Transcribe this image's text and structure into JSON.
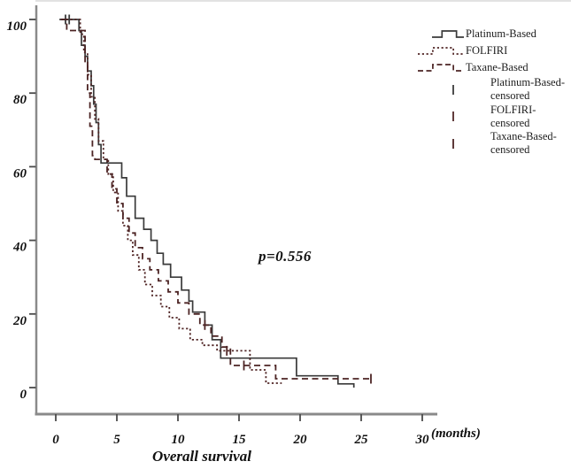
{
  "figure": {
    "p_value": "p=0.556",
    "x_axis_title": "Overall survival",
    "x_unit_label": "(months)"
  },
  "chart_data": {
    "type": "line",
    "subtype": "kaplan-meier-step-curves",
    "title": "",
    "xlabel": "Overall survival",
    "x_unit": "(months)",
    "ylabel": "",
    "xlim": [
      0,
      30
    ],
    "ylim": [
      0,
      100
    ],
    "x_ticks": [
      0,
      5,
      10,
      15,
      20,
      25,
      30
    ],
    "y_ticks": [
      0,
      20,
      40,
      60,
      80,
      100
    ],
    "grid": false,
    "legend_position": "top-right",
    "annotation": {
      "text": "p=0.556",
      "x_months": 18.8,
      "y_percent": 35
    },
    "axis_color": "#8a8a8a",
    "tick_color": "#4a4a4a",
    "label_color": "#101010",
    "series": [
      {
        "name": "Platinum-Based",
        "style": "solid",
        "color": "#3a3a3a",
        "steps": [
          [
            0.3,
            100
          ],
          [
            1.9,
            97
          ],
          [
            2.1,
            93
          ],
          [
            2.4,
            90
          ],
          [
            2.6,
            86
          ],
          [
            2.9,
            82
          ],
          [
            3.1,
            77
          ],
          [
            3.3,
            72
          ],
          [
            3.5,
            66
          ],
          [
            3.7,
            61
          ],
          [
            5.4,
            57
          ],
          [
            5.8,
            52
          ],
          [
            6.5,
            46
          ],
          [
            7.2,
            43
          ],
          [
            7.8,
            40
          ],
          [
            8.3,
            36.5
          ],
          [
            8.8,
            33.5
          ],
          [
            9.4,
            30
          ],
          [
            10.3,
            26.5
          ],
          [
            10.9,
            23.5
          ],
          [
            11.2,
            20.5
          ],
          [
            12.2,
            17
          ],
          [
            12.8,
            13
          ],
          [
            13.5,
            8
          ],
          [
            19.7,
            3.2
          ],
          [
            23.1,
            1
          ],
          [
            24.4,
            0
          ]
        ],
        "censored": [
          [
            0.8,
            100
          ],
          [
            1.1,
            100
          ]
        ]
      },
      {
        "name": "FOLFIRI",
        "style": "dotted",
        "color": "#512626",
        "steps": [
          [
            0.5,
            100
          ],
          [
            2.0,
            96
          ],
          [
            2.3,
            91
          ],
          [
            2.6,
            85
          ],
          [
            2.9,
            79
          ],
          [
            3.2,
            73
          ],
          [
            3.5,
            67
          ],
          [
            3.9,
            62
          ],
          [
            4.3,
            58
          ],
          [
            4.7,
            53
          ],
          [
            5.1,
            48
          ],
          [
            5.5,
            44
          ],
          [
            5.9,
            40
          ],
          [
            6.3,
            36
          ],
          [
            6.8,
            32
          ],
          [
            7.3,
            28
          ],
          [
            7.9,
            25
          ],
          [
            8.6,
            22
          ],
          [
            9.3,
            19
          ],
          [
            10.1,
            16
          ],
          [
            11.0,
            13
          ],
          [
            12.0,
            11.5
          ],
          [
            13.2,
            10
          ],
          [
            15.9,
            4.8
          ],
          [
            17.2,
            1.2
          ],
          [
            18.5,
            1.2
          ]
        ],
        "censored": [
          [
            14.0,
            10
          ]
        ]
      },
      {
        "name": "Taxane-Based",
        "style": "dashed",
        "color": "#4c2424",
        "steps": [
          [
            0.4,
            100
          ],
          [
            0.9,
            97
          ],
          [
            2.4,
            88
          ],
          [
            2.6,
            80
          ],
          [
            2.8,
            71
          ],
          [
            3.0,
            63
          ],
          [
            3.2,
            62
          ],
          [
            4.2,
            58
          ],
          [
            4.6,
            54
          ],
          [
            5.0,
            50
          ],
          [
            5.5,
            46
          ],
          [
            6.0,
            42
          ],
          [
            6.5,
            38
          ],
          [
            7.1,
            35
          ],
          [
            7.7,
            32
          ],
          [
            8.4,
            29
          ],
          [
            9.2,
            26
          ],
          [
            10.0,
            23
          ],
          [
            10.9,
            20
          ],
          [
            11.8,
            17
          ],
          [
            12.7,
            14
          ],
          [
            13.6,
            11
          ],
          [
            14.3,
            6
          ],
          [
            18.0,
            2.4
          ],
          [
            25.8,
            2.4
          ]
        ],
        "censored": [
          [
            12.2,
            17
          ],
          [
            15.4,
            6
          ],
          [
            25.8,
            2.4
          ]
        ]
      }
    ],
    "legend": [
      {
        "label": "Platinum-Based",
        "symbol": "solid-step",
        "color": "#3a3a3a"
      },
      {
        "label": "FOLFIRI",
        "symbol": "dotted-step",
        "color": "#512626"
      },
      {
        "label": "Taxane-Based",
        "symbol": "dashed-step",
        "color": "#4c2424"
      },
      {
        "label": "Platinum-Based-censored",
        "symbol": "censor-bar",
        "color": "#3a3a3a"
      },
      {
        "label": "FOLFIRI-censored",
        "symbol": "censor-bar",
        "color": "#512626"
      },
      {
        "label": "Taxane-Based-censored",
        "symbol": "censor-bar",
        "color": "#4c2424"
      }
    ]
  }
}
